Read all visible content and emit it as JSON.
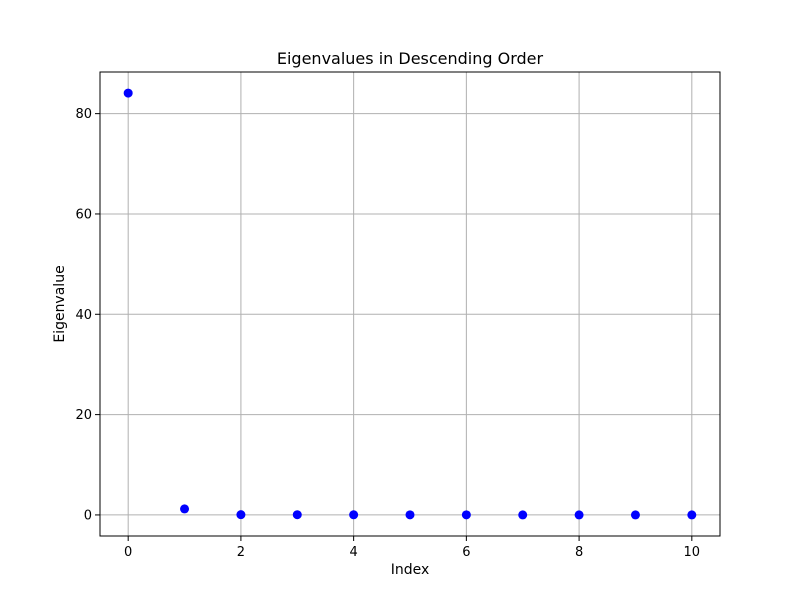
{
  "chart_data": {
    "type": "scatter",
    "title": "Eigenvalues in Descending Order",
    "xlabel": "Index",
    "ylabel": "Eigenvalue",
    "x": [
      0,
      1,
      2,
      3,
      4,
      5,
      6,
      7,
      8,
      9,
      10
    ],
    "y": [
      84.1,
      1.2,
      0.05,
      0.04,
      0.03,
      0.02,
      0.02,
      0.01,
      0.01,
      0.005,
      0.001
    ],
    "xlim": [
      -0.5,
      10.5
    ],
    "ylim": [
      -4.2,
      88.3
    ],
    "xticks": [
      0,
      2,
      4,
      6,
      8,
      10
    ],
    "yticks": [
      0,
      20,
      40,
      60,
      80
    ],
    "grid": true,
    "legend": "none",
    "marker_color": "#0000ff",
    "grid_color": "#b0b0b0"
  }
}
